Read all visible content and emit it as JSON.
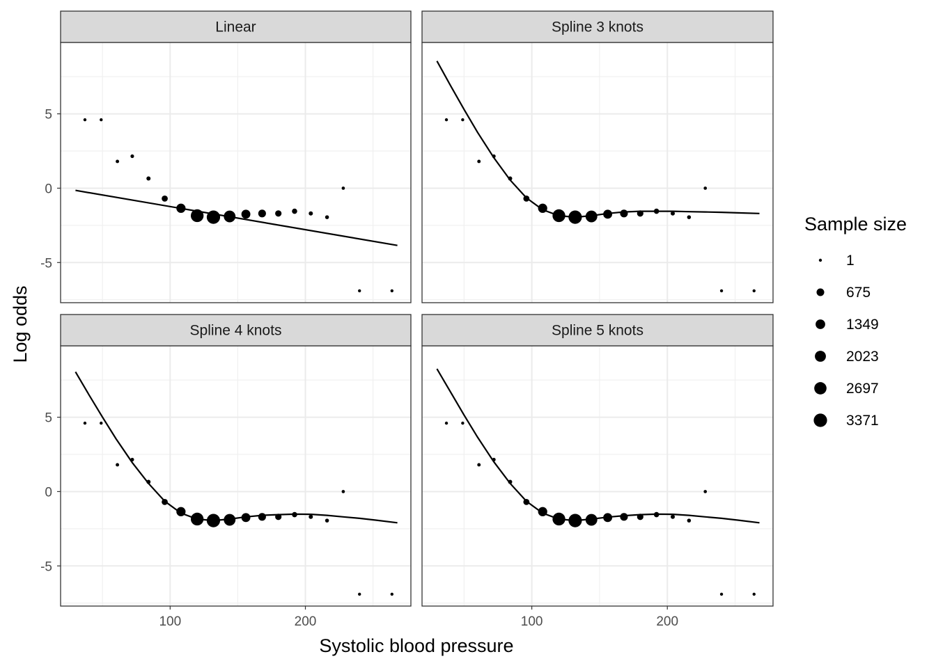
{
  "chart_data": {
    "type": "scatter",
    "xlabel": "Systolic blood pressure",
    "ylabel": "Log odds",
    "xlim": [
      19,
      278
    ],
    "ylim": [
      -7.7,
      9.8
    ],
    "x_ticks": [
      100,
      200
    ],
    "x_tick_labels": [
      "100",
      "200"
    ],
    "y_ticks": [
      -5,
      0,
      5
    ],
    "y_tick_labels": [
      "-5",
      "0",
      "5"
    ],
    "grid": true,
    "legend": {
      "title": "Sample size",
      "position": "right",
      "entries": [
        {
          "label": "1",
          "value": 1
        },
        {
          "label": "675",
          "value": 675
        },
        {
          "label": "1349",
          "value": 1349
        },
        {
          "label": "2023",
          "value": 2023
        },
        {
          "label": "2697",
          "value": 2697
        },
        {
          "label": "3371",
          "value": 3371
        }
      ]
    },
    "points": [
      {
        "x": 37,
        "y": 4.6,
        "n": 1
      },
      {
        "x": 49,
        "y": 4.6,
        "n": 1
      },
      {
        "x": 61,
        "y": 1.8,
        "n": 5
      },
      {
        "x": 72,
        "y": 2.15,
        "n": 10
      },
      {
        "x": 84,
        "y": 0.65,
        "n": 40
      },
      {
        "x": 96,
        "y": -0.7,
        "n": 300
      },
      {
        "x": 108,
        "y": -1.35,
        "n": 1200
      },
      {
        "x": 120,
        "y": -1.85,
        "n": 3000
      },
      {
        "x": 132,
        "y": -1.95,
        "n": 3371
      },
      {
        "x": 144,
        "y": -1.9,
        "n": 2400
      },
      {
        "x": 156,
        "y": -1.75,
        "n": 1100
      },
      {
        "x": 168,
        "y": -1.7,
        "n": 700
      },
      {
        "x": 180,
        "y": -1.7,
        "n": 350
      },
      {
        "x": 192,
        "y": -1.55,
        "n": 150
      },
      {
        "x": 204,
        "y": -1.7,
        "n": 40
      },
      {
        "x": 216,
        "y": -1.95,
        "n": 20
      },
      {
        "x": 228,
        "y": 0.0,
        "n": 2
      },
      {
        "x": 240,
        "y": -6.9,
        "n": 1
      },
      {
        "x": 264,
        "y": -6.9,
        "n": 1
      }
    ],
    "panels": [
      {
        "title": "Linear",
        "curve_x": [
          30,
          268
        ],
        "curve_y": [
          -0.15,
          -3.85
        ]
      },
      {
        "title": "Spline 3 knots",
        "curve_x": [
          30,
          40,
          50,
          60,
          72,
          84,
          96,
          108,
          120,
          132,
          144,
          156,
          168,
          180,
          192,
          204,
          216,
          228,
          240,
          252,
          268
        ],
        "curve_y": [
          8.55,
          6.9,
          5.3,
          3.75,
          2.05,
          0.55,
          -0.65,
          -1.45,
          -1.85,
          -1.95,
          -1.85,
          -1.7,
          -1.6,
          -1.55,
          -1.55,
          -1.55,
          -1.58,
          -1.6,
          -1.62,
          -1.66,
          -1.7
        ]
      },
      {
        "title": "Spline 4 knots",
        "curve_x": [
          30,
          40,
          50,
          60,
          72,
          84,
          96,
          108,
          120,
          132,
          144,
          156,
          168,
          180,
          192,
          204,
          216,
          228,
          240,
          252,
          268
        ],
        "curve_y": [
          8.05,
          6.5,
          5.0,
          3.55,
          1.95,
          0.55,
          -0.65,
          -1.45,
          -1.85,
          -1.95,
          -1.85,
          -1.7,
          -1.6,
          -1.55,
          -1.52,
          -1.53,
          -1.6,
          -1.7,
          -1.8,
          -1.92,
          -2.1
        ]
      },
      {
        "title": "Spline 5 knots",
        "curve_x": [
          30,
          40,
          50,
          60,
          72,
          84,
          96,
          108,
          120,
          132,
          144,
          156,
          168,
          180,
          192,
          204,
          216,
          228,
          240,
          252,
          268
        ],
        "curve_y": [
          8.25,
          6.7,
          5.15,
          3.65,
          2.0,
          0.55,
          -0.65,
          -1.45,
          -1.85,
          -1.95,
          -1.85,
          -1.72,
          -1.62,
          -1.55,
          -1.52,
          -1.53,
          -1.6,
          -1.7,
          -1.8,
          -1.92,
          -2.1
        ]
      }
    ]
  }
}
